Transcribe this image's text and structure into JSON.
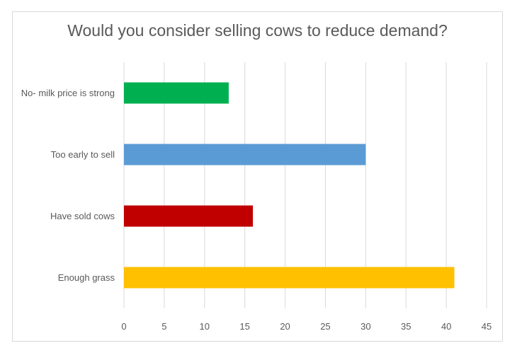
{
  "chart_data": {
    "type": "bar",
    "orientation": "horizontal",
    "title": "Would you consider selling cows to reduce demand?",
    "categories": [
      "No- milk price is strong",
      "Too early to sell",
      "Have sold cows",
      "Enough grass"
    ],
    "values": [
      13,
      30,
      16,
      41
    ],
    "colors": [
      "#00b050",
      "#5b9bd5",
      "#c00000",
      "#ffc000"
    ],
    "xlim": [
      0,
      45
    ],
    "xticks": [
      0,
      5,
      10,
      15,
      20,
      25,
      30,
      35,
      40,
      45
    ],
    "xlabel": "",
    "ylabel": "",
    "grid": true,
    "legend": "none"
  }
}
